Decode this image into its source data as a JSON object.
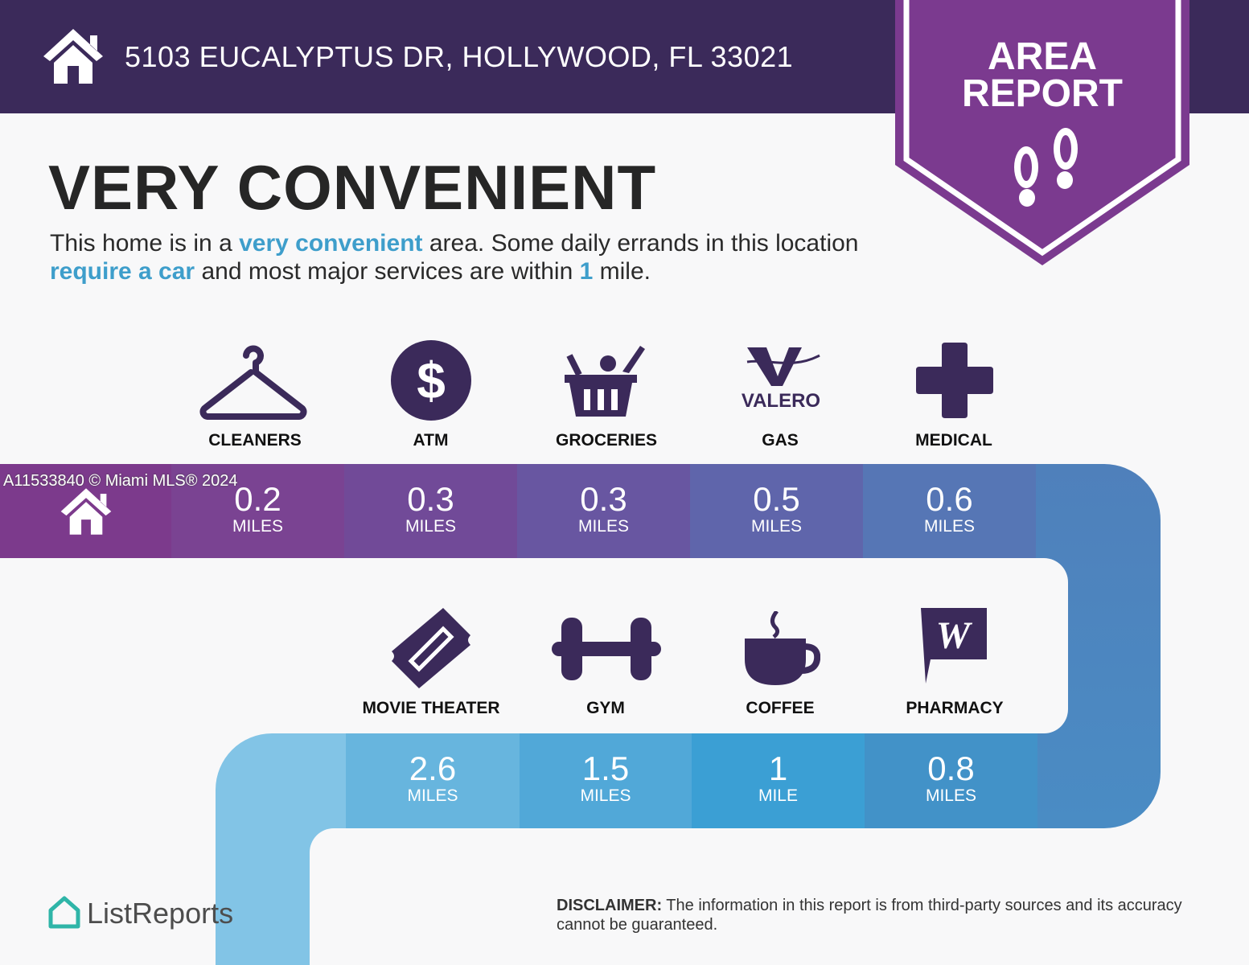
{
  "header": {
    "address": "5103 EUCALYPTUS DR, HOLLYWOOD, FL 33021",
    "home_icon": "house-icon"
  },
  "badge": {
    "line1": "AREA",
    "line2": "REPORT",
    "icon": "footprints-icon",
    "color": "#7b3a8f"
  },
  "title": "VERY CONVENIENT",
  "description": {
    "p1": "This home is in a ",
    "h1": "very convenient",
    "p2": " area. Some daily errands in this location ",
    "h2": "require a car",
    "p3": " and most major services are within ",
    "h3": "1",
    "p4": " mile."
  },
  "watermark": "A11533840 © Miami MLS® 2024",
  "amenities": [
    {
      "label": "CLEANERS",
      "distance": "0.2",
      "unit": "MILES",
      "icon": "hanger-icon"
    },
    {
      "label": "ATM",
      "distance": "0.3",
      "unit": "MILES",
      "icon": "dollar-icon"
    },
    {
      "label": "GROCERIES",
      "distance": "0.3",
      "unit": "MILES",
      "icon": "basket-icon"
    },
    {
      "label": "GAS",
      "distance": "0.5",
      "unit": "MILES",
      "icon": "valero-logo-icon",
      "logo_text": "VALERO"
    },
    {
      "label": "MEDICAL",
      "distance": "0.6",
      "unit": "MILES",
      "icon": "cross-icon"
    },
    {
      "label": "PHARMACY",
      "distance": "0.8",
      "unit": "MILES",
      "icon": "walgreens-icon"
    },
    {
      "label": "COFFEE",
      "distance": "1",
      "unit": "MILE",
      "icon": "coffee-icon"
    },
    {
      "label": "GYM",
      "distance": "1.5",
      "unit": "MILES",
      "icon": "dumbbell-icon"
    },
    {
      "label": "MOVIE THEATER",
      "distance": "2.6",
      "unit": "MILES",
      "icon": "ticket-icon"
    }
  ],
  "footer": {
    "logo": "ListReports",
    "disclaimer_label": "DISCLAIMER:",
    "disclaimer_text": " The information in this report is from third-party sources and its accuracy cannot be guaranteed."
  }
}
